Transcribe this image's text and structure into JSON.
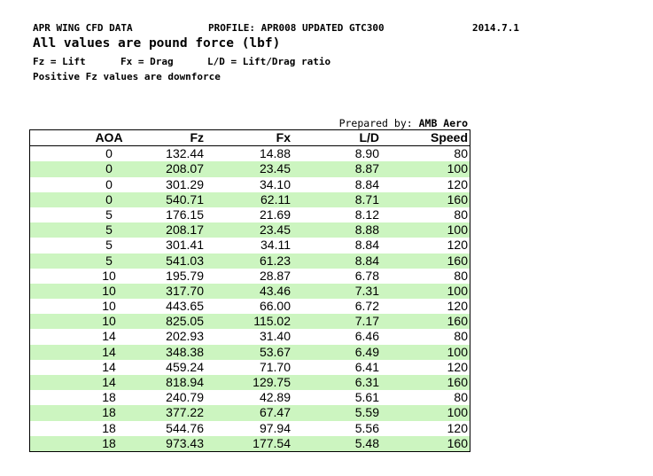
{
  "header": {
    "title": "APR WING CFD DATA",
    "profile": "PROFILE: APR008 UPDATED GTC300",
    "date": "2014.7.1",
    "units": "All values are pound force (lbf)",
    "legend_fz": "Fz = Lift",
    "legend_fx": "Fx = Drag",
    "legend_ld": "L/D = Lift/Drag ratio",
    "note": "Positive Fz values are downforce"
  },
  "prepared": {
    "label": "Prepared by:",
    "name": "AMB Aero"
  },
  "table": {
    "columns": [
      "AOA",
      "Fz",
      "Fx",
      "L/D",
      "Speed"
    ],
    "rows": [
      [
        "0",
        "132.44",
        "14.88",
        "8.90",
        "80"
      ],
      [
        "0",
        "208.07",
        "23.45",
        "8.87",
        "100"
      ],
      [
        "0",
        "301.29",
        "34.10",
        "8.84",
        "120"
      ],
      [
        "0",
        "540.71",
        "62.11",
        "8.71",
        "160"
      ],
      [
        "5",
        "176.15",
        "21.69",
        "8.12",
        "80"
      ],
      [
        "5",
        "208.17",
        "23.45",
        "8.88",
        "100"
      ],
      [
        "5",
        "301.41",
        "34.11",
        "8.84",
        "120"
      ],
      [
        "5",
        "541.03",
        "61.23",
        "8.84",
        "160"
      ],
      [
        "10",
        "195.79",
        "28.87",
        "6.78",
        "80"
      ],
      [
        "10",
        "317.70",
        "43.46",
        "7.31",
        "100"
      ],
      [
        "10",
        "443.65",
        "66.00",
        "6.72",
        "120"
      ],
      [
        "10",
        "825.05",
        "115.02",
        "7.17",
        "160"
      ],
      [
        "14",
        "202.93",
        "31.40",
        "6.46",
        "80"
      ],
      [
        "14",
        "348.38",
        "53.67",
        "6.49",
        "100"
      ],
      [
        "14",
        "459.24",
        "71.70",
        "6.41",
        "120"
      ],
      [
        "14",
        "818.94",
        "129.75",
        "6.31",
        "160"
      ],
      [
        "18",
        "240.79",
        "42.89",
        "5.61",
        "80"
      ],
      [
        "18",
        "377.22",
        "67.47",
        "5.59",
        "100"
      ],
      [
        "18",
        "544.76",
        "97.94",
        "5.56",
        "120"
      ],
      [
        "18",
        "973.43",
        "177.54",
        "5.48",
        "160"
      ]
    ]
  }
}
